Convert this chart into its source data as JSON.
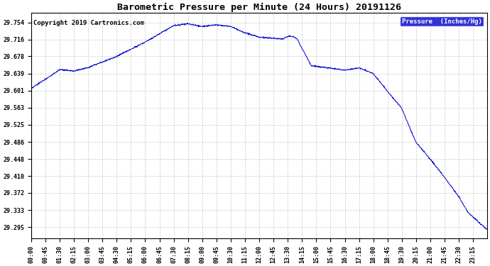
{
  "title": "Barometric Pressure per Minute (24 Hours) 20191126",
  "copyright": "Copyright 2019 Cartronics.com",
  "legend_label": "Pressure  (Inches/Hg)",
  "line_color": "#0000CC",
  "background_color": "#ffffff",
  "plot_bg_color": "#ffffff",
  "grid_color": "#bbbbbb",
  "legend_bg": "#0000CC",
  "legend_text_color": "#ffffff",
  "yticks": [
    29.295,
    29.333,
    29.372,
    29.41,
    29.448,
    29.486,
    29.525,
    29.563,
    29.601,
    29.639,
    29.678,
    29.716,
    29.754
  ],
  "ylim": [
    29.27,
    29.775
  ],
  "xtick_labels": [
    "00:00",
    "00:45",
    "01:30",
    "02:15",
    "03:00",
    "03:45",
    "04:30",
    "05:15",
    "06:00",
    "06:45",
    "07:30",
    "08:15",
    "09:00",
    "09:45",
    "10:30",
    "11:15",
    "12:00",
    "12:45",
    "13:30",
    "14:15",
    "15:00",
    "15:45",
    "16:30",
    "17:15",
    "18:00",
    "18:45",
    "19:30",
    "20:15",
    "21:00",
    "21:45",
    "22:30",
    "23:15"
  ],
  "title_fontsize": 9.5,
  "copyright_fontsize": 6.5,
  "tick_fontsize": 6,
  "legend_fontsize": 6.5,
  "ytick_fontsize": 6
}
